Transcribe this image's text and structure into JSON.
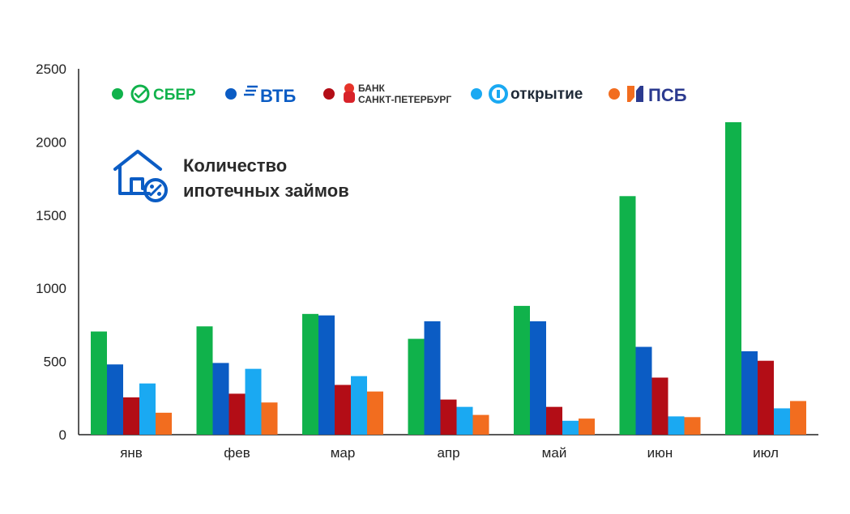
{
  "chart_data": {
    "type": "bar",
    "title": [
      "Количество",
      "ипотечных займов"
    ],
    "categories": [
      "янв",
      "фев",
      "мар",
      "апр",
      "май",
      "июн",
      "июл"
    ],
    "yticks": [
      "0",
      "500",
      "1000",
      "1500",
      "2000",
      "2500"
    ],
    "ylim": [
      0,
      2500
    ],
    "xlabel": "",
    "ylabel": "",
    "series": [
      {
        "name": "СБЕР",
        "color": "#10b24b",
        "values": [
          705,
          740,
          825,
          655,
          880,
          1630,
          2135
        ]
      },
      {
        "name": "ВТБ",
        "color": "#0b5cc4",
        "values": [
          480,
          490,
          815,
          775,
          775,
          600,
          570
        ]
      },
      {
        "name": "БАНК САНКТ-ПЕТЕРБУРГ",
        "label_lines": [
          "БАНК",
          "САНКТ-ПЕТЕРБУРГ"
        ],
        "color": "#b30d16",
        "values": [
          255,
          280,
          340,
          240,
          190,
          390,
          505
        ]
      },
      {
        "name": "открытие",
        "color": "#1aa9f2",
        "values": [
          350,
          450,
          400,
          190,
          95,
          125,
          180
        ]
      },
      {
        "name": "ПСБ",
        "color": "#f26d1f",
        "values": [
          150,
          220,
          295,
          135,
          110,
          120,
          230
        ]
      }
    ]
  }
}
